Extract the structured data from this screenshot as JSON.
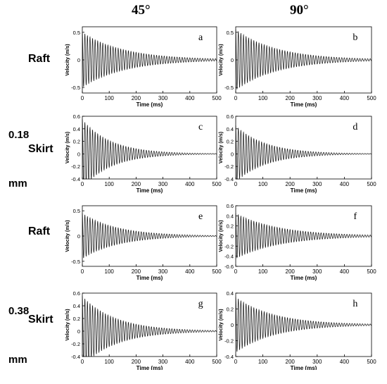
{
  "column_headers": [
    "45°",
    "90°"
  ],
  "row_labels": {
    "raft_top": "Raft",
    "skirt_top": "Skirt",
    "raft_bottom": "Raft",
    "skirt_bottom": "Skirt"
  },
  "size_labels": {
    "upper_line1": "0.18",
    "upper_line2": "mm",
    "lower_line1": "0.38",
    "lower_line2": "mm"
  },
  "chart_data": [
    {
      "type": "line",
      "panel_label": "a",
      "xlabel": "Time (ms)",
      "ylabel": "Velocity (m/s)",
      "xlim": [
        0,
        500
      ],
      "ylim": [
        -0.6,
        0.6
      ],
      "x_ticks": [
        0,
        100,
        200,
        300,
        400,
        500
      ],
      "y_ticks": [
        -0.5,
        0,
        0.5
      ],
      "series": [
        {
          "x": [
            0,
            500
          ],
          "y": [
            0.5,
            0.02
          ]
        }
      ]
    },
    {
      "type": "line",
      "panel_label": "b",
      "xlabel": "Time (ms)",
      "ylabel": "Velocity (m/s)",
      "xlim": [
        0,
        500
      ],
      "ylim": [
        -0.6,
        0.6
      ],
      "x_ticks": [
        0,
        100,
        200,
        300,
        400,
        500
      ],
      "y_ticks": [
        -0.5,
        0,
        0.5
      ],
      "series": [
        {
          "x": [
            0,
            500
          ],
          "y": [
            0.55,
            0.02
          ]
        }
      ]
    },
    {
      "type": "line",
      "panel_label": "c",
      "xlabel": "Time (ms)",
      "ylabel": "Velocity (m/s)",
      "xlim": [
        0,
        500
      ],
      "ylim": [
        -0.4,
        0.6
      ],
      "x_ticks": [
        0,
        100,
        200,
        300,
        400,
        500
      ],
      "y_ticks": [
        -0.4,
        -0.2,
        0,
        0.2,
        0.4,
        0.6
      ],
      "series": [
        {
          "x": [
            0,
            500
          ],
          "y": [
            0.55,
            0.0
          ]
        }
      ]
    },
    {
      "type": "line",
      "panel_label": "d",
      "xlabel": "Time (ms)",
      "ylabel": "Velocity (m/s)",
      "xlim": [
        0,
        500
      ],
      "ylim": [
        -0.4,
        0.6
      ],
      "x_ticks": [
        0,
        100,
        200,
        300,
        400,
        500
      ],
      "y_ticks": [
        -0.4,
        -0.2,
        0,
        0.2,
        0.4,
        0.6
      ],
      "series": [
        {
          "x": [
            0,
            500
          ],
          "y": [
            0.45,
            0.0
          ]
        }
      ]
    },
    {
      "type": "line",
      "panel_label": "e",
      "xlabel": "Time (ms)",
      "ylabel": "Velocity (m/s)",
      "xlim": [
        0,
        500
      ],
      "ylim": [
        -0.6,
        0.6
      ],
      "x_ticks": [
        0,
        100,
        200,
        300,
        400,
        500
      ],
      "y_ticks": [
        -0.5,
        0,
        0.5
      ],
      "series": [
        {
          "x": [
            0,
            500
          ],
          "y": [
            0.45,
            0.01
          ]
        }
      ]
    },
    {
      "type": "line",
      "panel_label": "f",
      "xlabel": "Time (ms)",
      "ylabel": "Velocity (m/s)",
      "xlim": [
        0,
        500
      ],
      "ylim": [
        -0.6,
        0.6
      ],
      "x_ticks": [
        0,
        100,
        200,
        300,
        400,
        500
      ],
      "y_ticks": [
        -0.6,
        -0.4,
        -0.2,
        0,
        0.2,
        0.4,
        0.6
      ],
      "series": [
        {
          "x": [
            0,
            500
          ],
          "y": [
            0.45,
            0.02
          ]
        }
      ]
    },
    {
      "type": "line",
      "panel_label": "g",
      "xlabel": "Time (ms)",
      "ylabel": "Velocity (m/s)",
      "xlim": [
        0,
        500
      ],
      "ylim": [
        -0.4,
        0.6
      ],
      "x_ticks": [
        0,
        100,
        200,
        300,
        400,
        500
      ],
      "y_ticks": [
        -0.4,
        -0.2,
        0,
        0.2,
        0.4,
        0.6
      ],
      "series": [
        {
          "x": [
            0,
            500
          ],
          "y": [
            0.55,
            0.01
          ]
        }
      ]
    },
    {
      "type": "line",
      "panel_label": "h",
      "xlabel": "Time (ms)",
      "ylabel": "Velocity (m/s)",
      "xlim": [
        0,
        500
      ],
      "ylim": [
        -0.4,
        0.4
      ],
      "x_ticks": [
        0,
        100,
        200,
        300,
        400,
        500
      ],
      "y_ticks": [
        -0.4,
        -0.2,
        0,
        0.2,
        0.4
      ],
      "series": [
        {
          "x": [
            0,
            500
          ],
          "y": [
            0.35,
            0.01
          ]
        }
      ]
    }
  ]
}
